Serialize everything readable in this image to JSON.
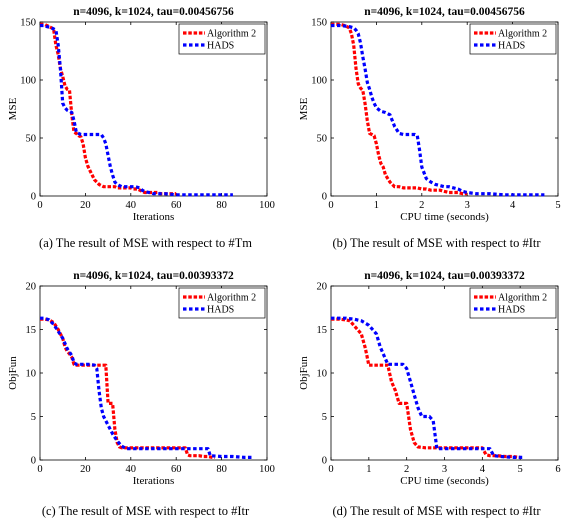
{
  "colors": {
    "algorithm2": "#ff0000",
    "hads": "#0000ff",
    "axis": "#000000"
  },
  "chart_data": [
    {
      "type": "line",
      "title": "n=4096, k=1024, tau=0.00456756",
      "xlabel": "Iterations",
      "ylabel": "MSE",
      "xlim": [
        0,
        100
      ],
      "ylim": [
        0,
        150
      ],
      "xticks": [
        "0",
        "20",
        "40",
        "60",
        "80",
        "100"
      ],
      "yticks": [
        "0",
        "50",
        "100",
        "150"
      ],
      "legend_position": "top-right",
      "caption": "(a)  The result of MSE with respect to #Tm",
      "series": [
        {
          "name": "Algorithm 2",
          "x": [
            0,
            1,
            2,
            3,
            4,
            5,
            6,
            7,
            8,
            9,
            10,
            11,
            12,
            13,
            14,
            15,
            16,
            17,
            18,
            19,
            20,
            21,
            22,
            23,
            24,
            25,
            26,
            27,
            28,
            29,
            30,
            31,
            32,
            33,
            34,
            35,
            36,
            37,
            38,
            39,
            40,
            41,
            42,
            43,
            44,
            45,
            46,
            47,
            48,
            49,
            50,
            51,
            52,
            53,
            54,
            55,
            56,
            57,
            58,
            59,
            60
          ],
          "y": [
            148,
            148,
            148,
            147,
            146,
            145,
            144,
            130,
            122,
            110,
            103,
            95,
            92,
            91,
            70,
            55,
            54,
            52,
            51,
            45,
            33,
            26,
            22,
            18,
            14,
            12,
            10,
            9,
            8,
            8,
            8,
            8,
            8,
            8,
            7,
            7,
            7,
            7,
            7,
            7,
            7,
            6,
            6,
            6,
            5,
            4,
            3,
            3,
            3,
            3,
            3,
            3,
            3,
            2,
            2,
            2,
            2,
            2,
            2,
            2,
            2
          ]
        },
        {
          "name": "HADS",
          "x": [
            0,
            2,
            3,
            5,
            7,
            8,
            9,
            10,
            11,
            12,
            13,
            14,
            15,
            16,
            17,
            18,
            19,
            20,
            21,
            22,
            23,
            24,
            25,
            26,
            27,
            28,
            29,
            30,
            31,
            32,
            33,
            34,
            35,
            36,
            38,
            40,
            42,
            44,
            45,
            46,
            48,
            50,
            55,
            60,
            65,
            70,
            75,
            80,
            85
          ],
          "y": [
            147,
            147,
            146,
            145,
            143,
            130,
            110,
            80,
            76,
            74,
            73,
            72,
            65,
            55,
            54,
            53,
            53,
            53,
            53,
            53,
            53,
            53,
            53,
            53,
            53,
            50,
            45,
            35,
            25,
            18,
            12,
            10,
            9,
            8,
            8,
            8,
            8,
            7,
            5,
            4,
            3,
            2,
            2,
            1,
            1,
            1,
            1,
            1,
            1
          ]
        }
      ]
    },
    {
      "type": "line",
      "title": "n=4096, k=1024, tau=0.00456756",
      "xlabel": "CPU time (seconds)",
      "ylabel": "MSE",
      "xlim": [
        0,
        5
      ],
      "ylim": [
        0,
        150
      ],
      "xticks": [
        "0",
        "1",
        "2",
        "3",
        "4",
        "5"
      ],
      "yticks": [
        "0",
        "50",
        "100",
        "150"
      ],
      "legend_position": "top-right",
      "caption": "(b)  The result of MSE with respect to #Itr",
      "series": [
        {
          "name": "Algorithm 2",
          "x": [
            0,
            0.1,
            0.2,
            0.3,
            0.35,
            0.4,
            0.45,
            0.5,
            0.55,
            0.6,
            0.62,
            0.65,
            0.7,
            0.75,
            0.8,
            0.85,
            0.9,
            0.95,
            1.0,
            1.05,
            1.1,
            1.15,
            1.2,
            1.25,
            1.3,
            1.35,
            1.4,
            1.5,
            1.6,
            1.7,
            1.8,
            1.9,
            2.0,
            2.1,
            2.2,
            2.3,
            2.4,
            2.5,
            2.6,
            2.7,
            2.8,
            2.9,
            3.0
          ],
          "y": [
            148,
            148,
            148,
            147,
            146,
            145,
            140,
            130,
            110,
            97,
            95,
            93,
            91,
            80,
            65,
            54,
            53,
            52,
            45,
            35,
            28,
            25,
            18,
            15,
            12,
            10,
            8,
            8,
            7,
            7,
            7,
            7,
            6,
            6,
            5,
            5,
            5,
            4,
            3,
            3,
            3,
            2,
            2
          ]
        },
        {
          "name": "HADS",
          "x": [
            0,
            0.2,
            0.4,
            0.5,
            0.55,
            0.6,
            0.65,
            0.7,
            0.75,
            0.8,
            0.85,
            0.9,
            0.95,
            1.0,
            1.1,
            1.2,
            1.3,
            1.4,
            1.5,
            1.6,
            1.7,
            1.75,
            1.8,
            1.85,
            1.9,
            1.95,
            2.0,
            2.1,
            2.2,
            2.3,
            2.4,
            2.5,
            2.6,
            2.7,
            2.8,
            2.9,
            3.0,
            3.2,
            3.5,
            3.8,
            4.0,
            4.3,
            4.7
          ],
          "y": [
            147,
            147,
            146,
            145,
            143,
            140,
            132,
            120,
            110,
            98,
            92,
            85,
            80,
            76,
            73,
            72,
            70,
            60,
            54,
            53,
            53,
            53,
            53,
            53,
            52,
            40,
            25,
            15,
            12,
            10,
            9,
            8,
            8,
            7,
            6,
            4,
            3,
            2,
            2,
            1,
            1,
            1,
            1
          ]
        }
      ]
    },
    {
      "type": "line",
      "title": "n=4096, k=1024, tau=0.00393372",
      "xlabel": "Iterations",
      "ylabel": "ObjFun",
      "xlim": [
        0,
        100
      ],
      "ylim": [
        0,
        20
      ],
      "xticks": [
        "0",
        "20",
        "40",
        "60",
        "80",
        "100"
      ],
      "yticks": [
        "0",
        "5",
        "10",
        "15",
        "20"
      ],
      "legend_position": "top-right",
      "caption": "(c)  The result of MSE with respect to #Itr",
      "series": [
        {
          "name": "Algorithm 2",
          "x": [
            0,
            2,
            4,
            6,
            8,
            9,
            10,
            11,
            12,
            13,
            14,
            15,
            16,
            17,
            18,
            20,
            22,
            24,
            26,
            28,
            29,
            30,
            31,
            32,
            33,
            34,
            35,
            36,
            38,
            40,
            45,
            50,
            55,
            60,
            62,
            64,
            65,
            66,
            68,
            70,
            72,
            74,
            76,
            77
          ],
          "y": [
            16.2,
            16.2,
            16.1,
            15.8,
            15,
            14.5,
            14,
            13,
            12.5,
            12.2,
            11.8,
            11,
            10.9,
            10.9,
            10.9,
            10.9,
            10.9,
            10.9,
            10.9,
            10.9,
            10.9,
            6.5,
            6.5,
            6.5,
            3.5,
            2,
            1.5,
            1.4,
            1.4,
            1.4,
            1.4,
            1.4,
            1.4,
            1.4,
            1.4,
            1.4,
            0.6,
            0.5,
            0.5,
            0.5,
            0.4,
            0.4,
            0.3,
            0.3
          ]
        },
        {
          "name": "HADS",
          "x": [
            0,
            2,
            4,
            6,
            8,
            10,
            12,
            14,
            15,
            16,
            18,
            20,
            22,
            24,
            25,
            26,
            27,
            28,
            30,
            32,
            34,
            36,
            38,
            40,
            45,
            50,
            55,
            60,
            65,
            68,
            70,
            72,
            74,
            75,
            80,
            85,
            90,
            94
          ],
          "y": [
            16.3,
            16.3,
            16.1,
            15.6,
            14.8,
            14,
            12.8,
            12,
            11.2,
            11,
            11,
            11,
            11,
            10.9,
            10.5,
            8,
            6,
            5,
            4,
            3,
            2.2,
            1.6,
            1.3,
            1.3,
            1.3,
            1.3,
            1.3,
            1.3,
            1.3,
            1.3,
            1.3,
            1.3,
            1.3,
            0.5,
            0.4,
            0.4,
            0.3,
            0.3
          ]
        }
      ]
    },
    {
      "type": "line",
      "title": "n=4096, k=1024, tau=0.00393372",
      "xlabel": "CPU time (seconds)",
      "ylabel": "ObjFun",
      "xlim": [
        0,
        6
      ],
      "ylim": [
        0,
        20
      ],
      "xticks": [
        "0",
        "1",
        "2",
        "3",
        "4",
        "5",
        "6"
      ],
      "yticks": [
        "0",
        "5",
        "10",
        "15",
        "20"
      ],
      "legend_position": "top-right",
      "caption": "(d)  The result of MSE with respect to #Itr",
      "series": [
        {
          "name": "Algorithm 2",
          "x": [
            0,
            0.2,
            0.4,
            0.5,
            0.6,
            0.7,
            0.8,
            0.9,
            0.95,
            1.0,
            1.2,
            1.4,
            1.5,
            1.6,
            1.7,
            1.8,
            1.9,
            2.0,
            2.1,
            2.2,
            2.3,
            2.5,
            2.8,
            3.0,
            3.5,
            3.8,
            4.0,
            4.1,
            4.2,
            4.4,
            4.6,
            4.8,
            5.0
          ],
          "y": [
            16.2,
            16.2,
            16.1,
            16,
            15.5,
            15,
            14.5,
            13,
            12,
            10.9,
            10.9,
            10.9,
            10.9,
            9,
            8,
            6.5,
            6.5,
            6.5,
            3.5,
            2,
            1.5,
            1.4,
            1.4,
            1.4,
            1.4,
            1.4,
            1.4,
            0.6,
            0.5,
            0.5,
            0.4,
            0.4,
            0.3
          ]
        },
        {
          "name": "HADS",
          "x": [
            0,
            0.4,
            0.6,
            0.8,
            1.0,
            1.1,
            1.2,
            1.3,
            1.4,
            1.5,
            1.6,
            1.7,
            1.8,
            1.9,
            2.0,
            2.1,
            2.2,
            2.3,
            2.4,
            2.5,
            2.6,
            2.7,
            2.8,
            3.0,
            3.5,
            4.0,
            4.2,
            4.3,
            4.5,
            4.8,
            5.1
          ],
          "y": [
            16.3,
            16.3,
            16.2,
            16.0,
            15.5,
            15,
            14.5,
            13,
            12,
            11,
            11,
            11,
            11,
            11,
            10.5,
            9,
            7.5,
            6,
            5,
            5,
            5,
            4.5,
            1.3,
            1.3,
            1.3,
            1.3,
            1.3,
            0.5,
            0.4,
            0.3,
            0.3
          ]
        }
      ]
    }
  ]
}
